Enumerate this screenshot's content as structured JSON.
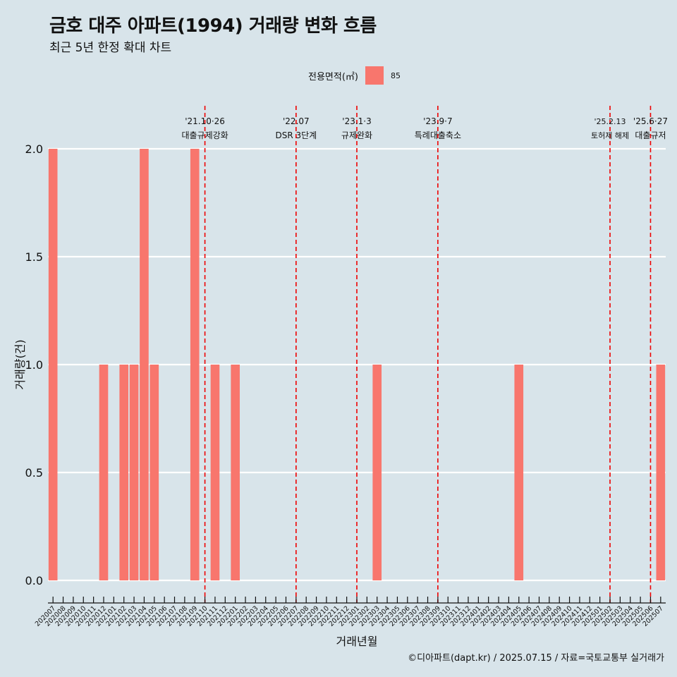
{
  "header": {
    "title": "금호 대주 아파트(1994) 거래량 변화 흐름",
    "subtitle": "최근 5년 한정 확대 차트"
  },
  "legend": {
    "title": "전용면적(㎡)",
    "items": [
      {
        "label": "85",
        "color": "#f8766d"
      }
    ]
  },
  "caption": "©디아파트(dapt.kr) / 2025.07.15 / 자료=국토교통부 실거래가",
  "colors": {
    "background": "#d8e4ea",
    "bar": "#f8766d",
    "grid": "#ffffff",
    "event_line": "#ee0000"
  },
  "chart_data": {
    "type": "bar",
    "xlabel": "거래년월",
    "ylabel": "거래량(건)",
    "ylim": [
      0,
      2
    ],
    "yticks": [
      "0.0",
      "0.5",
      "1.0",
      "1.5",
      "2.0"
    ],
    "ytick_values": [
      0,
      0.5,
      1.0,
      1.5,
      2.0
    ],
    "grid": true,
    "legend_position": "top",
    "categories": [
      "202007",
      "202008",
      "202009",
      "202010",
      "202011",
      "202012",
      "202101",
      "202102",
      "202103",
      "202104",
      "202105",
      "202106",
      "202107",
      "202108",
      "202109",
      "202110",
      "202111",
      "202112",
      "202201",
      "202202",
      "202203",
      "202204",
      "202205",
      "202206",
      "202207",
      "202208",
      "202209",
      "202210",
      "202211",
      "202212",
      "202301",
      "202302",
      "202303",
      "202304",
      "202305",
      "202306",
      "202307",
      "202308",
      "202309",
      "202310",
      "202311",
      "202312",
      "202401",
      "202402",
      "202403",
      "202404",
      "202405",
      "202406",
      "202407",
      "202408",
      "202409",
      "202410",
      "202411",
      "202412",
      "202501",
      "202502",
      "202503",
      "202504",
      "202505",
      "202506",
      "202507"
    ],
    "series": [
      {
        "name": "85",
        "values": [
          2,
          0,
          0,
          0,
          0,
          1,
          0,
          1,
          1,
          2,
          1,
          0,
          0,
          0,
          2,
          0,
          1,
          0,
          1,
          0,
          0,
          0,
          0,
          0,
          0,
          0,
          0,
          0,
          0,
          0,
          0,
          0,
          1,
          0,
          0,
          0,
          0,
          0,
          0,
          0,
          0,
          0,
          0,
          0,
          0,
          0,
          1,
          0,
          0,
          0,
          0,
          0,
          0,
          0,
          0,
          0,
          0,
          0,
          0,
          0,
          1
        ]
      }
    ],
    "annotations": [
      {
        "x": 15.5,
        "date": "'21.10·26",
        "label": "대출규제강화"
      },
      {
        "x": 24.5,
        "date": "'22.07",
        "label": "DSR 3단계"
      },
      {
        "x": 30.5,
        "date": "'23.1·3",
        "label": "규제완화"
      },
      {
        "x": 38.5,
        "date": "'23.9·7",
        "label": "특례대출축소"
      },
      {
        "x": 55.5,
        "date": "'25.2.13",
        "label": "토허제 해제"
      },
      {
        "x": 59.5,
        "date": "'25.6·27",
        "label": "대출규저"
      }
    ]
  }
}
